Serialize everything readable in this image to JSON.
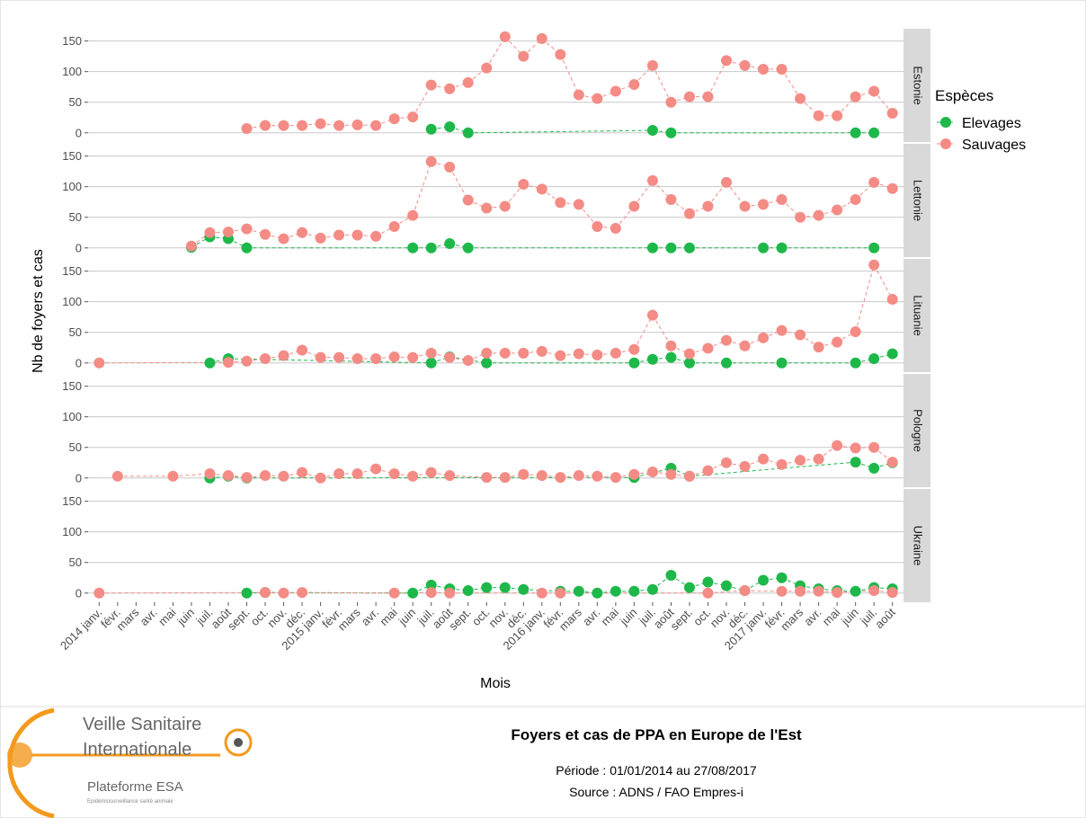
{
  "chart_data": {
    "type": "line",
    "ylabel": "Nb de foyers et cas",
    "xlabel": "Mois",
    "legend": {
      "title": "Espèces",
      "position": "right"
    },
    "categories": [
      "2014 janv.",
      "févr.",
      "mars",
      "avr.",
      "mai",
      "juin",
      "juil.",
      "août",
      "sept.",
      "oct.",
      "nov.",
      "déc.",
      "2015 janv.",
      "févr.",
      "mars",
      "avr.",
      "mai",
      "juin",
      "juil.",
      "août",
      "sept.",
      "oct.",
      "nov.",
      "déc.",
      "2016 janv.",
      "févr.",
      "mars",
      "avr.",
      "mai",
      "juin",
      "juil.",
      "août",
      "sept.",
      "oct.",
      "nov.",
      "déc.",
      "2017 janv.",
      "févr.",
      "mars",
      "avr.",
      "mai",
      "juin",
      "juil.",
      "août"
    ],
    "ylim": [
      -15,
      170
    ],
    "yticks": [
      0,
      50,
      100,
      150
    ],
    "grid": true,
    "facets": [
      {
        "name": "Estonie",
        "series": [
          {
            "name": "Elevages",
            "color": "#1eb84a",
            "values": [
              null,
              null,
              null,
              null,
              null,
              null,
              null,
              null,
              null,
              null,
              null,
              null,
              null,
              null,
              null,
              null,
              null,
              null,
              6,
              10,
              0,
              null,
              null,
              null,
              null,
              null,
              null,
              null,
              null,
              null,
              4,
              0,
              null,
              null,
              null,
              null,
              null,
              null,
              null,
              null,
              null,
              0,
              0,
              null
            ]
          },
          {
            "name": "Sauvages",
            "color": "#f48b85",
            "values": [
              null,
              null,
              null,
              null,
              null,
              null,
              null,
              null,
              7,
              12,
              12,
              12,
              15,
              12,
              13,
              12,
              23,
              26,
              78,
              72,
              82,
              106,
              157,
              125,
              154,
              128,
              62,
              56,
              68,
              79,
              110,
              50,
              59,
              59,
              118,
              110,
              104,
              104,
              56,
              28,
              28,
              59,
              68,
              32
            ]
          }
        ]
      },
      {
        "name": "Lettonie",
        "series": [
          {
            "name": "Elevages",
            "color": "#1eb84a",
            "values": [
              null,
              null,
              null,
              null,
              null,
              1,
              18,
              15,
              0,
              null,
              null,
              null,
              null,
              null,
              null,
              null,
              null,
              0,
              0,
              7,
              0,
              null,
              null,
              null,
              null,
              null,
              null,
              null,
              null,
              null,
              0,
              0,
              0,
              null,
              null,
              null,
              0,
              0,
              null,
              null,
              null,
              null,
              0,
              null
            ]
          },
          {
            "name": "Sauvages",
            "color": "#f48b85",
            "values": [
              null,
              null,
              null,
              null,
              null,
              3,
              25,
              26,
              31,
              22,
              15,
              25,
              16,
              21,
              21,
              19,
              35,
              53,
              141,
              132,
              78,
              65,
              68,
              104,
              96,
              74,
              71,
              35,
              32,
              68,
              110,
              79,
              56,
              68,
              107,
              68,
              71,
              79,
              50,
              53,
              62,
              79,
              107,
              97
            ]
          }
        ]
      },
      {
        "name": "Lituanie",
        "series": [
          {
            "name": "Elevages",
            "color": "#1eb84a",
            "values": [
              null,
              null,
              null,
              null,
              null,
              null,
              0,
              7,
              null,
              null,
              null,
              null,
              null,
              null,
              null,
              null,
              null,
              null,
              0,
              10,
              null,
              0,
              null,
              null,
              null,
              null,
              null,
              null,
              null,
              0,
              6,
              9,
              0,
              null,
              0,
              null,
              null,
              0,
              null,
              null,
              null,
              0,
              7,
              15
            ]
          },
          {
            "name": "Sauvages",
            "color": "#f48b85",
            "values": [
              0,
              null,
              null,
              null,
              null,
              null,
              null,
              1,
              3,
              7,
              12,
              21,
              9,
              9,
              7,
              7,
              10,
              9,
              16,
              9,
              4,
              16,
              16,
              16,
              19,
              12,
              15,
              13,
              16,
              22,
              78,
              28,
              15,
              24,
              37,
              28,
              41,
              53,
              46,
              26,
              34,
              51,
              160,
              104
            ]
          }
        ]
      },
      {
        "name": "Pologne",
        "series": [
          {
            "name": "Elevages",
            "color": "#1eb84a",
            "values": [
              null,
              null,
              null,
              null,
              null,
              null,
              0,
              3,
              0,
              null,
              null,
              null,
              null,
              null,
              null,
              null,
              null,
              null,
              null,
              null,
              null,
              null,
              null,
              null,
              null,
              null,
              null,
              null,
              null,
              1,
              null,
              16,
              3,
              null,
              null,
              null,
              null,
              null,
              null,
              null,
              null,
              26,
              16,
              25
            ]
          },
          {
            "name": "Sauvages",
            "color": "#f48b85",
            "values": [
              null,
              3,
              null,
              null,
              3,
              null,
              7,
              4,
              1,
              4,
              3,
              9,
              0,
              7,
              7,
              15,
              7,
              3,
              9,
              4,
              null,
              1,
              1,
              6,
              4,
              1,
              4,
              3,
              1,
              6,
              10,
              6,
              3,
              12,
              25,
              19,
              31,
              22,
              29,
              31,
              53,
              49,
              50,
              26
            ]
          }
        ]
      },
      {
        "name": "Ukraine",
        "series": [
          {
            "name": "Elevages",
            "color": "#1eb84a",
            "values": [
              null,
              null,
              null,
              null,
              null,
              null,
              null,
              null,
              0,
              1,
              null,
              null,
              null,
              null,
              null,
              null,
              null,
              0,
              13,
              7,
              4,
              9,
              9,
              6,
              null,
              3,
              3,
              0,
              3,
              3,
              6,
              29,
              9,
              18,
              12,
              4,
              21,
              25,
              12,
              7,
              4,
              3,
              9,
              7
            ]
          },
          {
            "name": "Sauvages",
            "color": "#f48b85",
            "values": [
              0,
              null,
              null,
              null,
              null,
              null,
              null,
              null,
              null,
              1,
              0,
              1,
              null,
              null,
              null,
              null,
              0,
              null,
              1,
              0,
              null,
              null,
              null,
              null,
              0,
              0,
              null,
              null,
              null,
              null,
              null,
              null,
              null,
              0,
              null,
              4,
              null,
              3,
              3,
              3,
              1,
              null,
              4,
              1
            ]
          }
        ]
      }
    ]
  },
  "footer": {
    "logo": {
      "line1": "Veille Sanitaire",
      "line2": "Internationale",
      "line3": "Plateforme ESA",
      "line4": "Epidémiosurveillance santé animale"
    },
    "title": "Foyers et cas de PPA en Europe de l'Est",
    "period": "Période : 01/01/2014 au 27/08/2017",
    "source": "Source : ADNS / FAO Empres-i"
  }
}
